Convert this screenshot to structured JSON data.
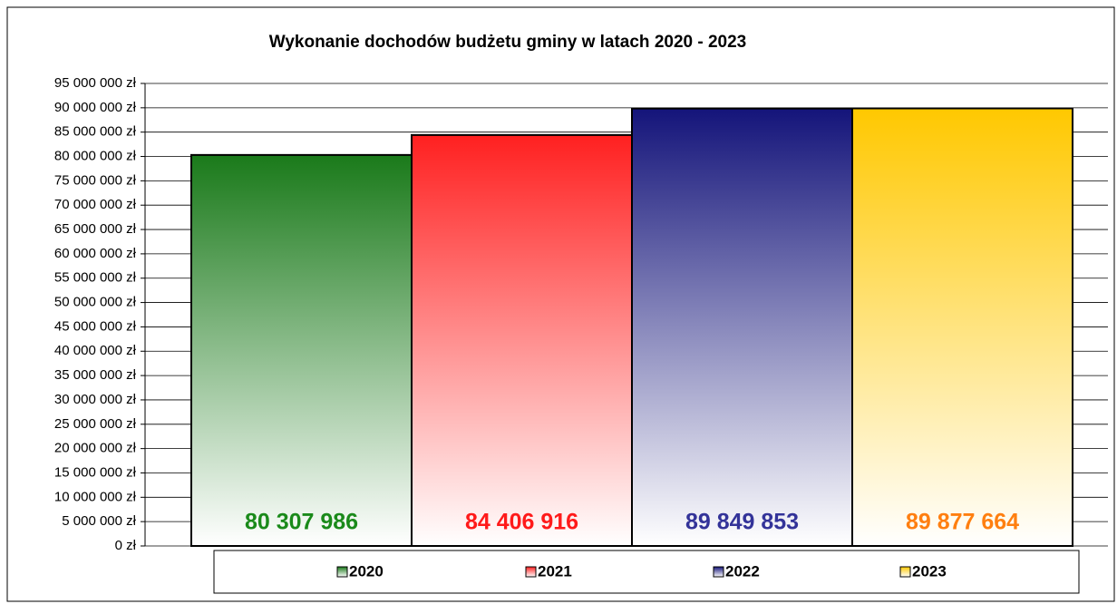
{
  "chart_data": {
    "type": "bar",
    "title": "Wykonanie dochodów budżetu gminy w latach 2020 - 2023",
    "categories": [
      null
    ],
    "series": [
      {
        "name": "2020",
        "color": "#1a7a1a",
        "label_color": "#1a8a1a",
        "values": [
          80307986
        ],
        "value_labels": [
          "80 307 986"
        ]
      },
      {
        "name": "2021",
        "color": "#ff2020",
        "label_color": "#ff1a1a",
        "values": [
          84406916
        ],
        "value_labels": [
          "84 406 916"
        ]
      },
      {
        "name": "2022",
        "color": "#14147a",
        "label_color": "#333399",
        "values": [
          89849853
        ],
        "value_labels": [
          "89 849 853"
        ]
      },
      {
        "name": "2023",
        "color": "#ffc800",
        "label_color": "#ff7f10",
        "values": [
          89877664
        ],
        "value_labels": [
          "89 877 664"
        ]
      }
    ],
    "ylim": [
      0,
      95000000
    ],
    "yticks": [
      {
        "value": 0,
        "label": "0 zł"
      },
      {
        "value": 5000000,
        "label": "5 000 000 zł"
      },
      {
        "value": 10000000,
        "label": "10 000 000 zł"
      },
      {
        "value": 15000000,
        "label": "15 000 000 zł"
      },
      {
        "value": 20000000,
        "label": "20 000 000 zł"
      },
      {
        "value": 25000000,
        "label": "25 000 000 zł"
      },
      {
        "value": 30000000,
        "label": "30 000 000 zł"
      },
      {
        "value": 35000000,
        "label": "35 000 000 zł"
      },
      {
        "value": 40000000,
        "label": "40 000 000 zł"
      },
      {
        "value": 45000000,
        "label": "45 000 000 zł"
      },
      {
        "value": 50000000,
        "label": "50 000 000 zł"
      },
      {
        "value": 55000000,
        "label": "55 000 000 zł"
      },
      {
        "value": 60000000,
        "label": "60 000 000 zł"
      },
      {
        "value": 65000000,
        "label": "65 000 000 zł"
      },
      {
        "value": 70000000,
        "label": "70 000 000 zł"
      },
      {
        "value": 75000000,
        "label": "75 000 000 zł"
      },
      {
        "value": 80000000,
        "label": "80 000 000 zł"
      },
      {
        "value": 85000000,
        "label": "85 000 000 zł"
      },
      {
        "value": 90000000,
        "label": "90 000 000 zł"
      },
      {
        "value": 95000000,
        "label": "95 000 000 zł"
      }
    ],
    "grid": true,
    "legend": "bottom"
  }
}
